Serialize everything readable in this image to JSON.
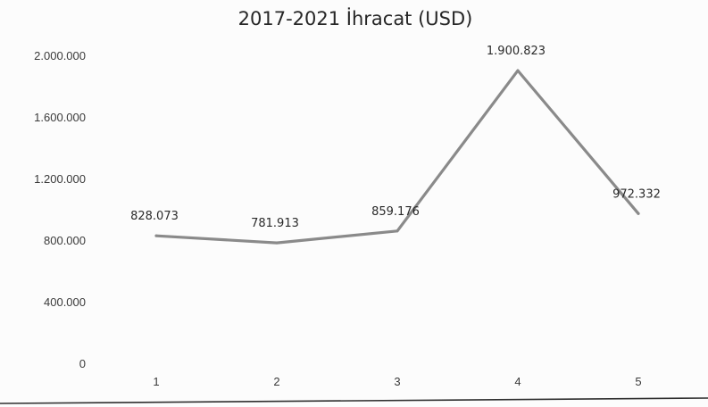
{
  "chart_data": {
    "type": "line",
    "title": "2017-2021 İhracat (USD)",
    "xlabel": "",
    "ylabel": "",
    "categories": [
      "1",
      "2",
      "3",
      "4",
      "5"
    ],
    "series": [
      {
        "values": [
          828073,
          781913,
          859176,
          1900823,
          972332
        ],
        "data_labels": [
          "828.073",
          "781.913",
          "859.176",
          "1.900.823",
          "972.332"
        ]
      }
    ],
    "ylim": [
      0,
      2000000
    ],
    "yticks": [
      0,
      400000,
      800000,
      1200000,
      1600000,
      2000000
    ],
    "ytick_labels": [
      "0",
      "400.000",
      "800.000",
      "1.200.000",
      "1.600.000",
      "2.000.000"
    ],
    "grid": false,
    "legend": "none",
    "colors": {
      "line": "#8a8a8a",
      "text": "#2a2a2a"
    }
  }
}
